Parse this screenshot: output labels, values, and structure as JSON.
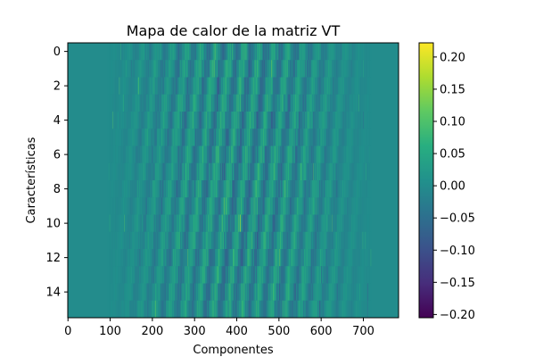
{
  "chart_data": {
    "type": "heatmap",
    "title": "Mapa de calor de la matriz VT",
    "xlabel": "Componentes",
    "ylabel": "Características",
    "rows": 16,
    "columns": 784,
    "x_ticks": [
      0,
      100,
      200,
      300,
      400,
      500,
      600,
      700
    ],
    "y_ticks": [
      0,
      2,
      4,
      6,
      8,
      10,
      12,
      14
    ],
    "colorbar": {
      "ticks": [
        "0.20",
        "0.15",
        "0.10",
        "0.05",
        "0.00",
        "−0.05",
        "−0.10",
        "−0.15",
        "−0.20"
      ],
      "tick_values": [
        0.2,
        0.15,
        0.1,
        0.05,
        0.0,
        -0.05,
        -0.1,
        -0.15,
        -0.2
      ],
      "range": [
        -0.205,
        0.222
      ]
    },
    "active_column_range": [
      95,
      720
    ],
    "zero_value_column_ranges": [
      [
        0,
        95
      ],
      [
        720,
        784
      ]
    ],
    "colormap": "viridis",
    "grid": false
  }
}
